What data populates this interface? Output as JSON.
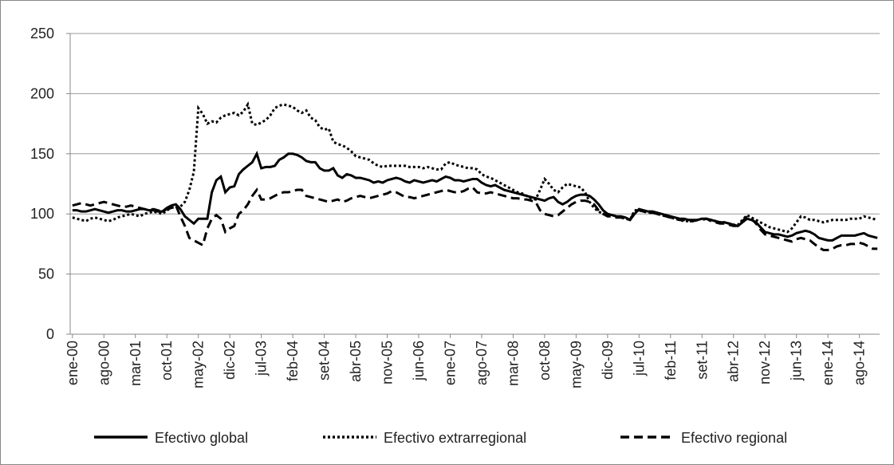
{
  "chart_data": {
    "type": "line",
    "categories": [
      "ene-00",
      null,
      null,
      null,
      null,
      null,
      null,
      "ago-00",
      null,
      null,
      null,
      null,
      null,
      null,
      "mar-01",
      null,
      null,
      null,
      null,
      null,
      null,
      "oct-01",
      null,
      null,
      null,
      null,
      null,
      null,
      "may-02",
      null,
      null,
      null,
      null,
      null,
      null,
      "dic-02",
      null,
      null,
      null,
      null,
      null,
      null,
      "jul-03",
      null,
      null,
      null,
      null,
      null,
      null,
      "feb-04",
      null,
      null,
      null,
      null,
      null,
      null,
      "set-04",
      null,
      null,
      null,
      null,
      null,
      null,
      "abr-05",
      null,
      null,
      null,
      null,
      null,
      null,
      "nov-05",
      null,
      null,
      null,
      null,
      null,
      null,
      "jun-06",
      null,
      null,
      null,
      null,
      null,
      null,
      "ene-07",
      null,
      null,
      null,
      null,
      null,
      null,
      "ago-07",
      null,
      null,
      null,
      null,
      null,
      null,
      "mar-08",
      null,
      null,
      null,
      null,
      null,
      null,
      "oct-08",
      null,
      null,
      null,
      null,
      null,
      null,
      "may-09",
      null,
      null,
      null,
      null,
      null,
      null,
      "dic-09",
      null,
      null,
      null,
      null,
      null,
      null,
      "jul-10",
      null,
      null,
      null,
      null,
      null,
      null,
      "feb-11",
      null,
      null,
      null,
      null,
      null,
      null,
      "set-11",
      null,
      null,
      null,
      null,
      null,
      null,
      "abr-12",
      null,
      null,
      null,
      null,
      null,
      null,
      "nov-12",
      null,
      null,
      null,
      null,
      null,
      null,
      "jun-13",
      null,
      null,
      null,
      null,
      null,
      null,
      "ene-14",
      null,
      null,
      null,
      null,
      null,
      null,
      "ago-14",
      null,
      null,
      null,
      null
    ],
    "series": [
      {
        "name": "Efectivo global",
        "color": "#000000",
        "style": "solid",
        "values": [
          103,
          103,
          102,
          102,
          103,
          104,
          103,
          102,
          101,
          102,
          103,
          103,
          102,
          102,
          103,
          104,
          104,
          103,
          103,
          102,
          102,
          105,
          107,
          108,
          104,
          98,
          95,
          92,
          96,
          96,
          96,
          118,
          128,
          131,
          118,
          122,
          123,
          133,
          137,
          140,
          143,
          150,
          138,
          139,
          139,
          140,
          145,
          147,
          150,
          150,
          149,
          147,
          144,
          143,
          143,
          138,
          136,
          136,
          138,
          132,
          130,
          133,
          132,
          130,
          130,
          129,
          128,
          126,
          127,
          126,
          128,
          129,
          130,
          129,
          127,
          126,
          128,
          127,
          126,
          127,
          128,
          127,
          129,
          131,
          130,
          128,
          128,
          127,
          128,
          129,
          129,
          126,
          124,
          123,
          124,
          122,
          120,
          119,
          118,
          117,
          116,
          115,
          114,
          113,
          112,
          111,
          113,
          114,
          110,
          108,
          110,
          113,
          115,
          116,
          116,
          115,
          112,
          108,
          103,
          100,
          99,
          98,
          98,
          97,
          95,
          100,
          104,
          103,
          102,
          102,
          101,
          100,
          99,
          98,
          97,
          96,
          96,
          95,
          95,
          95,
          96,
          96,
          95,
          94,
          93,
          93,
          92,
          91,
          90,
          93,
          96,
          95,
          93,
          89,
          85,
          84,
          83,
          83,
          82,
          81,
          82,
          84,
          85,
          86,
          85,
          83,
          80,
          79,
          78,
          78,
          80,
          82,
          82,
          82,
          82,
          83,
          84,
          82,
          81,
          80
        ]
      },
      {
        "name": "Efectivo extrarregional",
        "color": "#000000",
        "style": "dotted",
        "values": [
          97,
          96,
          95,
          94,
          96,
          97,
          96,
          95,
          94,
          95,
          97,
          98,
          99,
          100,
          99,
          98,
          100,
          101,
          102,
          101,
          100,
          103,
          105,
          106,
          106,
          110,
          120,
          135,
          188,
          183,
          175,
          177,
          176,
          180,
          182,
          183,
          184,
          182,
          185,
          191,
          175,
          174,
          176,
          178,
          182,
          188,
          190,
          191,
          190,
          189,
          186,
          184,
          186,
          180,
          178,
          172,
          170,
          171,
          160,
          158,
          157,
          155,
          152,
          148,
          147,
          146,
          145,
          142,
          140,
          139,
          140,
          140,
          140,
          140,
          140,
          139,
          139,
          139,
          138,
          139,
          138,
          137,
          137,
          142,
          143,
          141,
          140,
          139,
          138,
          138,
          137,
          133,
          131,
          130,
          128,
          126,
          124,
          122,
          120,
          118,
          117,
          115,
          113,
          112,
          120,
          129,
          125,
          120,
          118,
          122,
          125,
          124,
          123,
          122,
          118,
          110,
          105,
          102,
          100,
          100,
          99,
          98,
          97,
          96,
          95,
          103,
          103,
          102,
          101,
          101,
          100,
          99,
          98,
          97,
          96,
          95,
          94,
          94,
          94,
          95,
          96,
          96,
          95,
          94,
          93,
          93,
          92,
          91,
          91,
          95,
          99,
          97,
          95,
          93,
          91,
          89,
          88,
          87,
          86,
          85,
          88,
          93,
          98,
          97,
          95,
          95,
          94,
          93,
          94,
          95,
          95,
          95,
          95,
          96,
          96,
          96,
          98,
          97,
          96,
          95
        ]
      },
      {
        "name": "Efectivo regional",
        "color": "#000000",
        "style": "dashed",
        "values": [
          107,
          108,
          109,
          108,
          107,
          108,
          109,
          110,
          109,
          108,
          107,
          106,
          106,
          107,
          106,
          105,
          104,
          103,
          104,
          103,
          102,
          104,
          105,
          107,
          98,
          90,
          80,
          78,
          76,
          74,
          88,
          96,
          99,
          96,
          85,
          88,
          90,
          100,
          103,
          108,
          115,
          120,
          112,
          112,
          113,
          115,
          117,
          118,
          118,
          119,
          120,
          120,
          115,
          114,
          113,
          112,
          111,
          110,
          111,
          112,
          110,
          111,
          113,
          114,
          115,
          114,
          113,
          114,
          115,
          116,
          117,
          119,
          118,
          116,
          114,
          114,
          113,
          114,
          115,
          116,
          117,
          118,
          119,
          120,
          119,
          118,
          118,
          119,
          121,
          122,
          118,
          117,
          117,
          118,
          117,
          116,
          115,
          114,
          113,
          113,
          112,
          112,
          111,
          110,
          103,
          100,
          99,
          98,
          99,
          102,
          105,
          108,
          110,
          111,
          111,
          110,
          108,
          103,
          100,
          98,
          98,
          97,
          97,
          96,
          95,
          102,
          103,
          102,
          101,
          101,
          100,
          99,
          98,
          97,
          96,
          95,
          95,
          94,
          94,
          95,
          95,
          96,
          94,
          93,
          92,
          92,
          91,
          90,
          90,
          94,
          98,
          96,
          92,
          87,
          83,
          82,
          81,
          80,
          79,
          78,
          77,
          79,
          80,
          79,
          78,
          75,
          72,
          70,
          70,
          71,
          73,
          74,
          74,
          75,
          75,
          76,
          75,
          73,
          71,
          71
        ]
      }
    ],
    "ylim": [
      0,
      250
    ],
    "yticks": [
      0,
      50,
      100,
      150,
      200,
      250
    ],
    "grid": true,
    "legend": "bottom"
  }
}
